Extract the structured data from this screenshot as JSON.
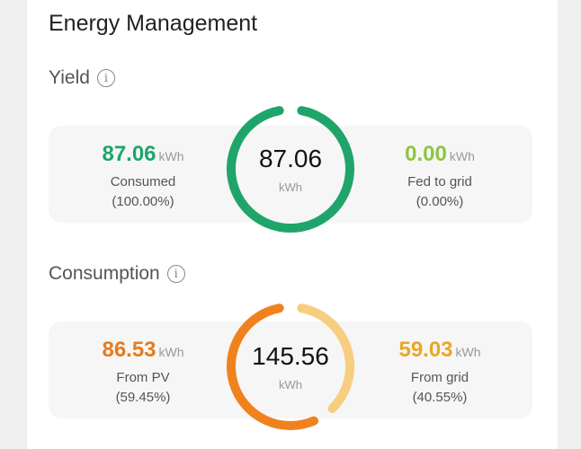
{
  "title": "Energy Management",
  "colors": {
    "green": "#1fa56a",
    "light_green": "#8cc63f",
    "orange": "#f0821e",
    "light_orange": "#f7cd7f",
    "amber": "#e8a824"
  },
  "yield": {
    "label": "Yield",
    "info_icon": "info-icon",
    "total": "87.06",
    "unit": "kWh",
    "left": {
      "value": "87.06",
      "unit": "kWh",
      "label": "Consumed",
      "percent": "(100.00%)"
    },
    "right": {
      "value": "0.00",
      "unit": "kWh",
      "label": "Fed to grid",
      "percent": "(0.00%)"
    },
    "fraction_consumed": 1.0
  },
  "consumption": {
    "label": "Consumption",
    "info_icon": "info-icon",
    "total": "145.56",
    "unit": "kWh",
    "left": {
      "value": "86.53",
      "unit": "kWh",
      "label": "From PV",
      "percent": "(59.45%)"
    },
    "right": {
      "value": "59.03",
      "unit": "kWh",
      "label": "From grid",
      "percent": "(40.55%)"
    },
    "fraction_pv": 0.5945
  }
}
